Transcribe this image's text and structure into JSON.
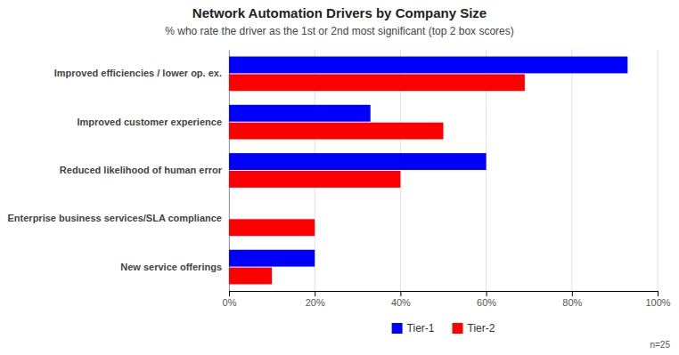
{
  "chart_data": {
    "type": "bar",
    "orientation": "horizontal",
    "title": "Network Automation Drivers by Company Size",
    "subtitle": "% who rate the driver as the 1st or 2nd most significant (top 2 box scores)",
    "categories": [
      "Improved efficiencies / lower op. ex.",
      "Improved customer experience",
      "Reduced likelihood of human error",
      "Enterprise business services/SLA compliance",
      "New service offerings"
    ],
    "series": [
      {
        "name": "Tier-1",
        "color": "#0000FF",
        "values": [
          0.93,
          0.33,
          0.6,
          0.0,
          0.2
        ]
      },
      {
        "name": "Tier-2",
        "color": "#FF0000",
        "values": [
          0.69,
          0.5,
          0.4,
          0.2,
          0.1
        ]
      }
    ],
    "xlim": [
      0,
      1.0
    ],
    "xticks": [
      {
        "value": 0.0,
        "label": "0%"
      },
      {
        "value": 0.2,
        "label": "20%"
      },
      {
        "value": 0.4,
        "label": "40%"
      },
      {
        "value": 0.6,
        "label": "60%"
      },
      {
        "value": 0.8,
        "label": "80%"
      },
      {
        "value": 1.0,
        "label": "100%"
      }
    ],
    "grid": true,
    "legend": "bottom",
    "annotations": [
      "n=25"
    ]
  }
}
